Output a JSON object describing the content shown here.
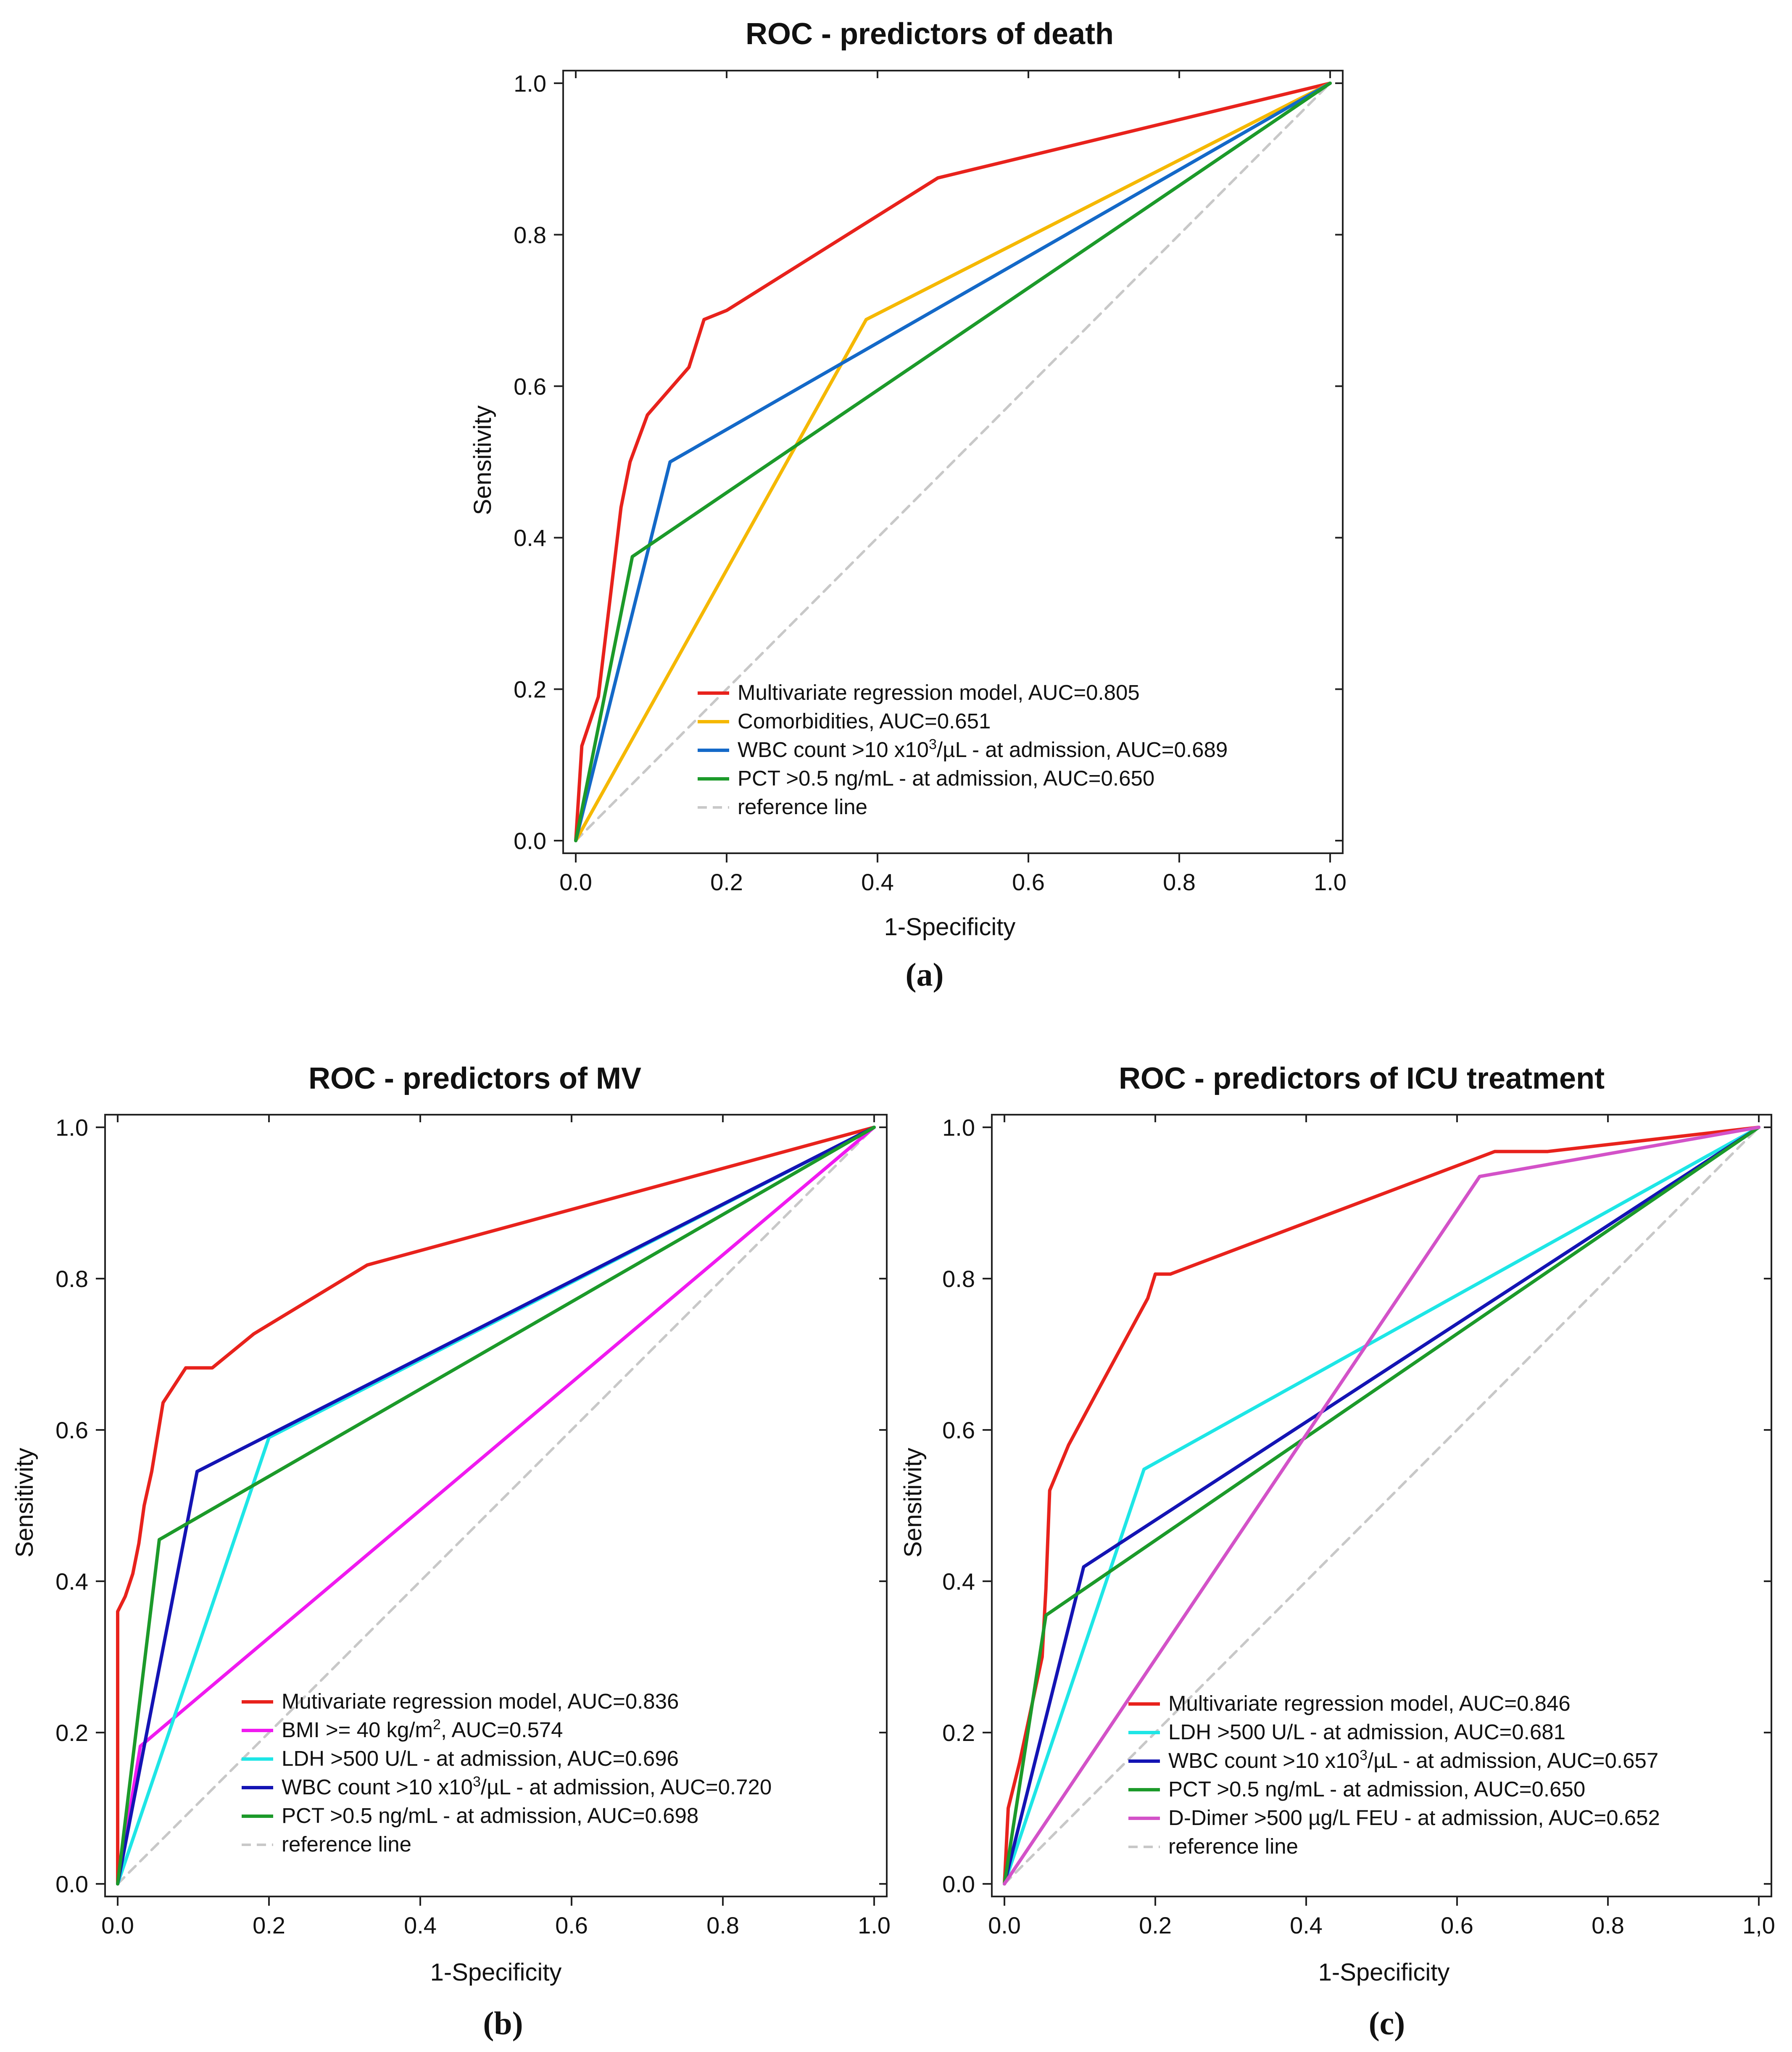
{
  "chart_data": [
    {
      "type": "line",
      "panel": "(a)",
      "title": "ROC - predictors of death",
      "xlabel": "1-Specificity",
      "ylabel": "Sensitivity",
      "xlim": [
        0,
        1
      ],
      "ylim": [
        0,
        1
      ],
      "xticks": [
        "0.0",
        "0.2",
        "0.4",
        "0.6",
        "0.8",
        "1.0"
      ],
      "yticks": [
        "0.0",
        "0.2",
        "0.4",
        "0.6",
        "0.8",
        "1.0"
      ],
      "legend_position": "bottom-right",
      "grid": false,
      "series": [
        {
          "name": "Multivariate regression model, AUC=0.805",
          "color": "#e8221c",
          "width": 8,
          "dashed": false,
          "x": [
            0,
            0.008,
            0.008,
            0.03,
            0.06,
            0.072,
            0.095,
            0.15,
            0.17,
            0.2,
            0.48,
            1.0
          ],
          "y": [
            0,
            0.125,
            0.125,
            0.19,
            0.44,
            0.5,
            0.562,
            0.625,
            0.688,
            0.7,
            0.875,
            1.0
          ]
        },
        {
          "name": "Comorbidities, AUC=0.651",
          "color": "#f5b800",
          "width": 8,
          "dashed": false,
          "x": [
            0,
            0.385,
            1.0
          ],
          "y": [
            0,
            0.688,
            1.0
          ]
        },
        {
          "name": "WBC count >10 x10³/µL - at admission, AUC=0.689",
          "color": "#1469c8",
          "width": 8,
          "dashed": false,
          "x": [
            0,
            0.125,
            1.0
          ],
          "y": [
            0,
            0.5,
            1.0
          ]
        },
        {
          "name": "PCT >0.5 ng/mL - at admission, AUC=0.650",
          "color": "#1c9a2a",
          "width": 8,
          "dashed": false,
          "x": [
            0,
            0.075,
            1.0
          ],
          "y": [
            0,
            0.375,
            1.0
          ]
        },
        {
          "name": "reference line",
          "color": "#c8c8c8",
          "width": 6,
          "dashed": true,
          "x": [
            0,
            1
          ],
          "y": [
            0,
            1
          ]
        }
      ]
    },
    {
      "type": "line",
      "panel": "(b)",
      "title": "ROC - predictors of MV",
      "xlabel": "1-Specificity",
      "ylabel": "Sensitivity",
      "xlim": [
        0,
        1
      ],
      "ylim": [
        0,
        1
      ],
      "xticks": [
        "0.0",
        "0.2",
        "0.4",
        "0.6",
        "0.8",
        "1.0"
      ],
      "yticks": [
        "0.0",
        "0.2",
        "0.4",
        "0.6",
        "0.8",
        "1.0"
      ],
      "legend_position": "bottom-right",
      "grid": false,
      "series": [
        {
          "name": "Mutivariate regression model, AUC=0.836",
          "color": "#e8221c",
          "width": 8,
          "dashed": false,
          "x": [
            0,
            0,
            0.01,
            0.02,
            0.028,
            0.035,
            0.045,
            0.06,
            0.09,
            0.115,
            0.125,
            0.18,
            0.33,
            1.0
          ],
          "y": [
            0,
            0.36,
            0.38,
            0.41,
            0.45,
            0.5,
            0.545,
            0.636,
            0.682,
            0.682,
            0.682,
            0.727,
            0.818,
            1.0
          ]
        },
        {
          "name": "BMI >= 40 kg/m², AUC=0.574",
          "color": "#f01af0",
          "width": 8,
          "dashed": false,
          "x": [
            0,
            0.03,
            1.0
          ],
          "y": [
            0,
            0.182,
            1.0
          ]
        },
        {
          "name": "LDH >500 U/L - at admission, AUC=0.696",
          "color": "#1ee6e6",
          "width": 8,
          "dashed": false,
          "x": [
            0,
            0.2,
            1.0
          ],
          "y": [
            0,
            0.59,
            1.0
          ]
        },
        {
          "name": "WBC count >10 x10³/µL - at admission, AUC=0.720",
          "color": "#1414b4",
          "width": 8,
          "dashed": false,
          "x": [
            0,
            0.105,
            1.0
          ],
          "y": [
            0,
            0.545,
            1.0
          ]
        },
        {
          "name": "PCT >0.5 ng/mL - at admission, AUC=0.698",
          "color": "#1c9a2a",
          "width": 8,
          "dashed": false,
          "x": [
            0,
            0.055,
            1.0
          ],
          "y": [
            0,
            0.455,
            1.0
          ]
        },
        {
          "name": "reference line",
          "color": "#c8c8c8",
          "width": 6,
          "dashed": true,
          "x": [
            0,
            1
          ],
          "y": [
            0,
            1
          ]
        }
      ]
    },
    {
      "type": "line",
      "panel": "(c)",
      "title": "ROC - predictors of ICU treatment",
      "xlabel": "1-Specificity",
      "ylabel": "Sensitivity",
      "xlim": [
        0,
        1
      ],
      "ylim": [
        0,
        1
      ],
      "xticks": [
        "0.0",
        "0.2",
        "0.4",
        "0.6",
        "0.8",
        "1,0"
      ],
      "yticks": [
        "0.0",
        "0.2",
        "0.4",
        "0.6",
        "0.8",
        "1.0"
      ],
      "legend_position": "bottom-right",
      "grid": false,
      "series": [
        {
          "name": "Multivariate regression model, AUC=0.846",
          "color": "#e8221c",
          "width": 8,
          "dashed": false,
          "x": [
            0,
            0.005,
            0.02,
            0.035,
            0.05,
            0.055,
            0.06,
            0.085,
            0.12,
            0.19,
            0.2,
            0.22,
            0.65,
            0.72,
            1.0
          ],
          "y": [
            0,
            0.1,
            0.16,
            0.23,
            0.3,
            0.39,
            0.52,
            0.58,
            0.645,
            0.774,
            0.806,
            0.806,
            0.968,
            0.968,
            1.0
          ]
        },
        {
          "name": "LDH >500 U/L - at admission, AUC=0.681",
          "color": "#1ee6e6",
          "width": 8,
          "dashed": false,
          "x": [
            0,
            0.185,
            1.0
          ],
          "y": [
            0,
            0.548,
            1.0
          ]
        },
        {
          "name": "WBC count >10 x10³/µL - at admission, AUC=0.657",
          "color": "#1414b4",
          "width": 8,
          "dashed": false,
          "x": [
            0,
            0.105,
            1.0
          ],
          "y": [
            0,
            0.419,
            1.0
          ]
        },
        {
          "name": "PCT >0.5 ng/mL - at admission, AUC=0.650",
          "color": "#1c9a2a",
          "width": 8,
          "dashed": false,
          "x": [
            0,
            0.055,
            1.0
          ],
          "y": [
            0,
            0.355,
            1.0
          ]
        },
        {
          "name": "D-Dimer >500 µg/L FEU - at admission, AUC=0.652",
          "color": "#d352c8",
          "width": 8,
          "dashed": false,
          "x": [
            0,
            0.63,
            1.0
          ],
          "y": [
            0,
            0.935,
            1.0
          ]
        },
        {
          "name": "reference line",
          "color": "#c8c8c8",
          "width": 6,
          "dashed": true,
          "x": [
            0,
            1
          ],
          "y": [
            0,
            1
          ]
        }
      ]
    }
  ]
}
